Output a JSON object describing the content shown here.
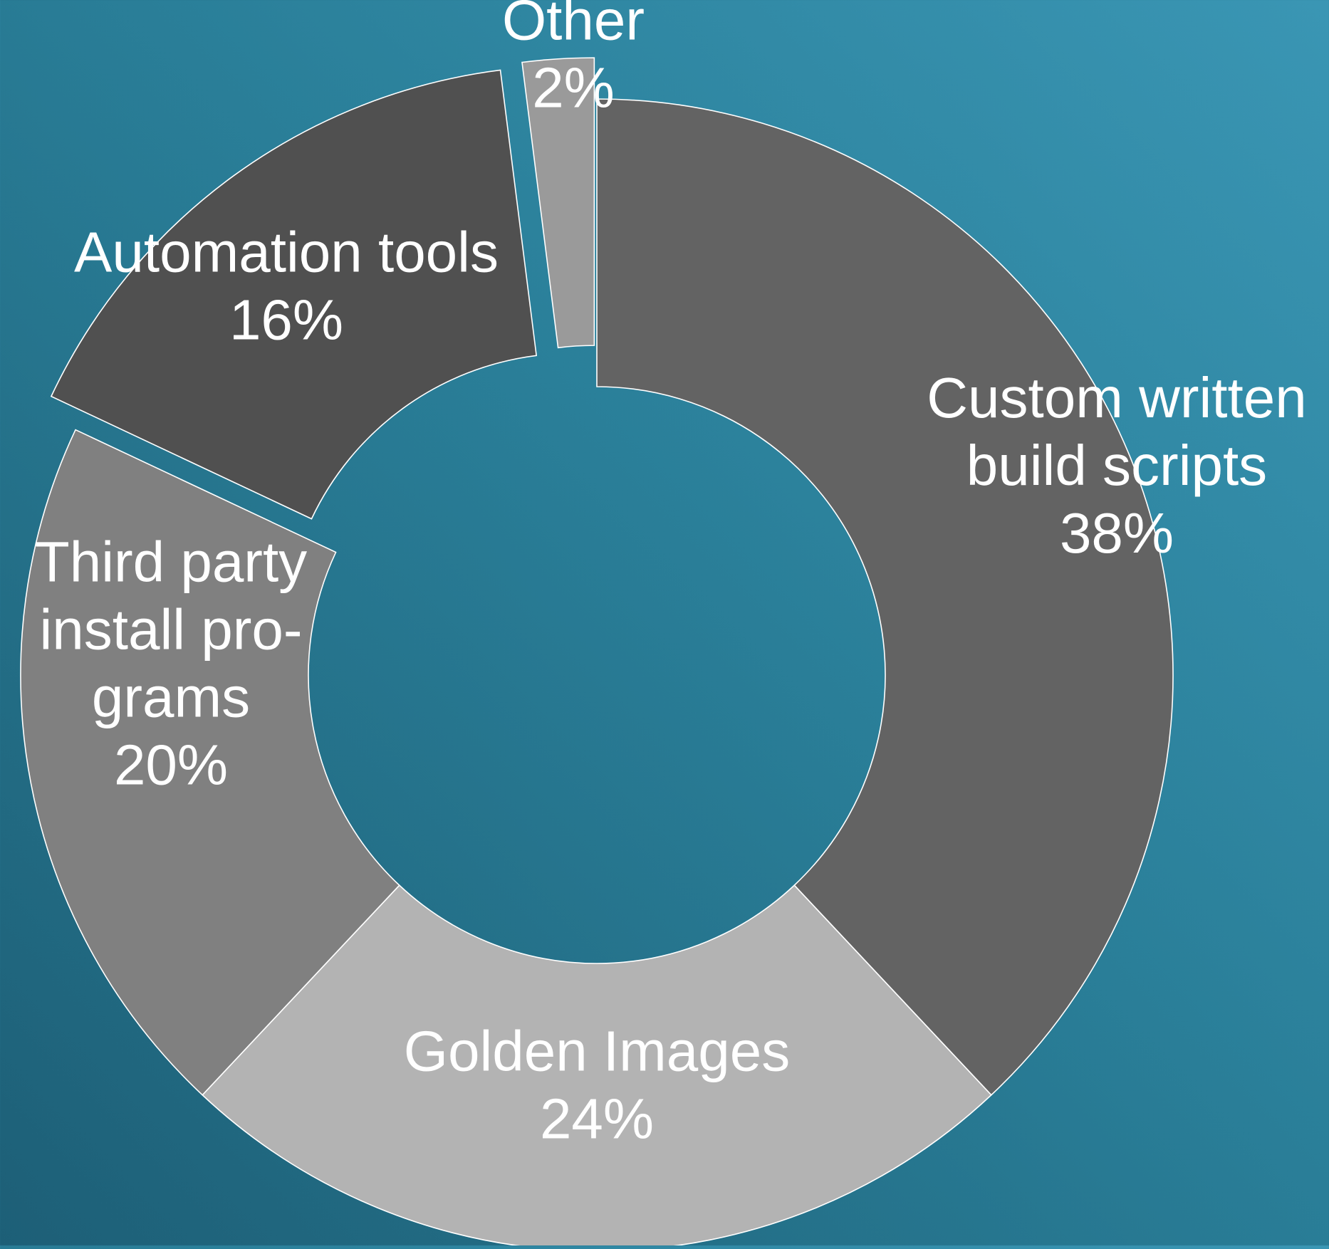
{
  "chart_data": {
    "type": "pie",
    "variant": "donut",
    "slices": [
      {
        "label_lines": [
          "Custom written",
          "build scripts"
        ],
        "value": 38,
        "value_label": "38%",
        "color": "#636363",
        "exploded": false
      },
      {
        "label_lines": [
          "Golden Images"
        ],
        "value": 24,
        "value_label": "24%",
        "color": "#b3b3b3",
        "exploded": false
      },
      {
        "label_lines": [
          "Third party",
          "install pro-",
          "grams"
        ],
        "value": 20,
        "value_label": "20%",
        "color": "#808080",
        "exploded": false
      },
      {
        "label_lines": [
          "Automation tools"
        ],
        "value": 16,
        "value_label": "16%",
        "color": "#505050",
        "exploded": true
      },
      {
        "label_lines": [
          "Other"
        ],
        "value": 2,
        "value_label": "2%",
        "color": "#9a9a9a",
        "exploded": true
      }
    ],
    "slice_border_color": "#ffffff",
    "legend": "none",
    "start_direction": "top",
    "direction": "clockwise"
  }
}
